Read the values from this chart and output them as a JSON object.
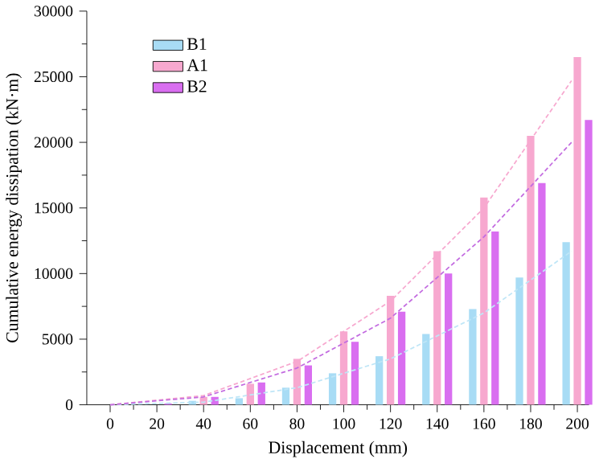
{
  "chart_data": {
    "type": "bar",
    "xlabel": "Displacement (mm)",
    "ylabel": "Cumulative  energy dissipation (kN·m)",
    "x": [
      0,
      20,
      40,
      60,
      80,
      100,
      120,
      140,
      160,
      180,
      200
    ],
    "xlim": [
      -10,
      205
    ],
    "xticks": [
      0,
      20,
      40,
      60,
      80,
      100,
      120,
      140,
      160,
      180,
      200
    ],
    "ylim": [
      0,
      30000
    ],
    "yticks": [
      0,
      5000,
      10000,
      15000,
      20000,
      25000,
      30000
    ],
    "legend": "top left",
    "grid": false,
    "series": [
      {
        "name": "B1",
        "color": "#a8dcf5",
        "values": [
          0,
          0,
          300,
          500,
          1300,
          2400,
          3700,
          5400,
          7300,
          9700,
          12400
        ]
      },
      {
        "name": "A1",
        "color": "#f7a8cf",
        "values": [
          0,
          null,
          600,
          1600,
          3500,
          5600,
          8300,
          11700,
          15800,
          20500,
          26500
        ]
      },
      {
        "name": "B2",
        "color": "#d96ef0",
        "values": [
          0,
          100,
          600,
          1700,
          3000,
          4800,
          7100,
          10000,
          13200,
          16900,
          21700
        ]
      },
      {
        "type": "line",
        "line_style": "dashed",
        "color": "#bfe6f7",
        "x": [
          0,
          40,
          80,
          120,
          160,
          197.5
        ],
        "values": [
          0,
          200,
          1300,
          3500,
          7000,
          11700
        ]
      },
      {
        "type": "line",
        "line_style": "dashed",
        "color": "#f7a8cf",
        "x": [
          0,
          40,
          80,
          120,
          160,
          197.5
        ],
        "values": [
          0,
          700,
          3300,
          7900,
          15000,
          24700
        ]
      },
      {
        "type": "line",
        "line_style": "dashed",
        "color": "#c36be0",
        "x": [
          0,
          40,
          80,
          120,
          160,
          197.5
        ],
        "values": [
          0,
          600,
          2800,
          6600,
          12800,
          20000
        ]
      }
    ]
  }
}
